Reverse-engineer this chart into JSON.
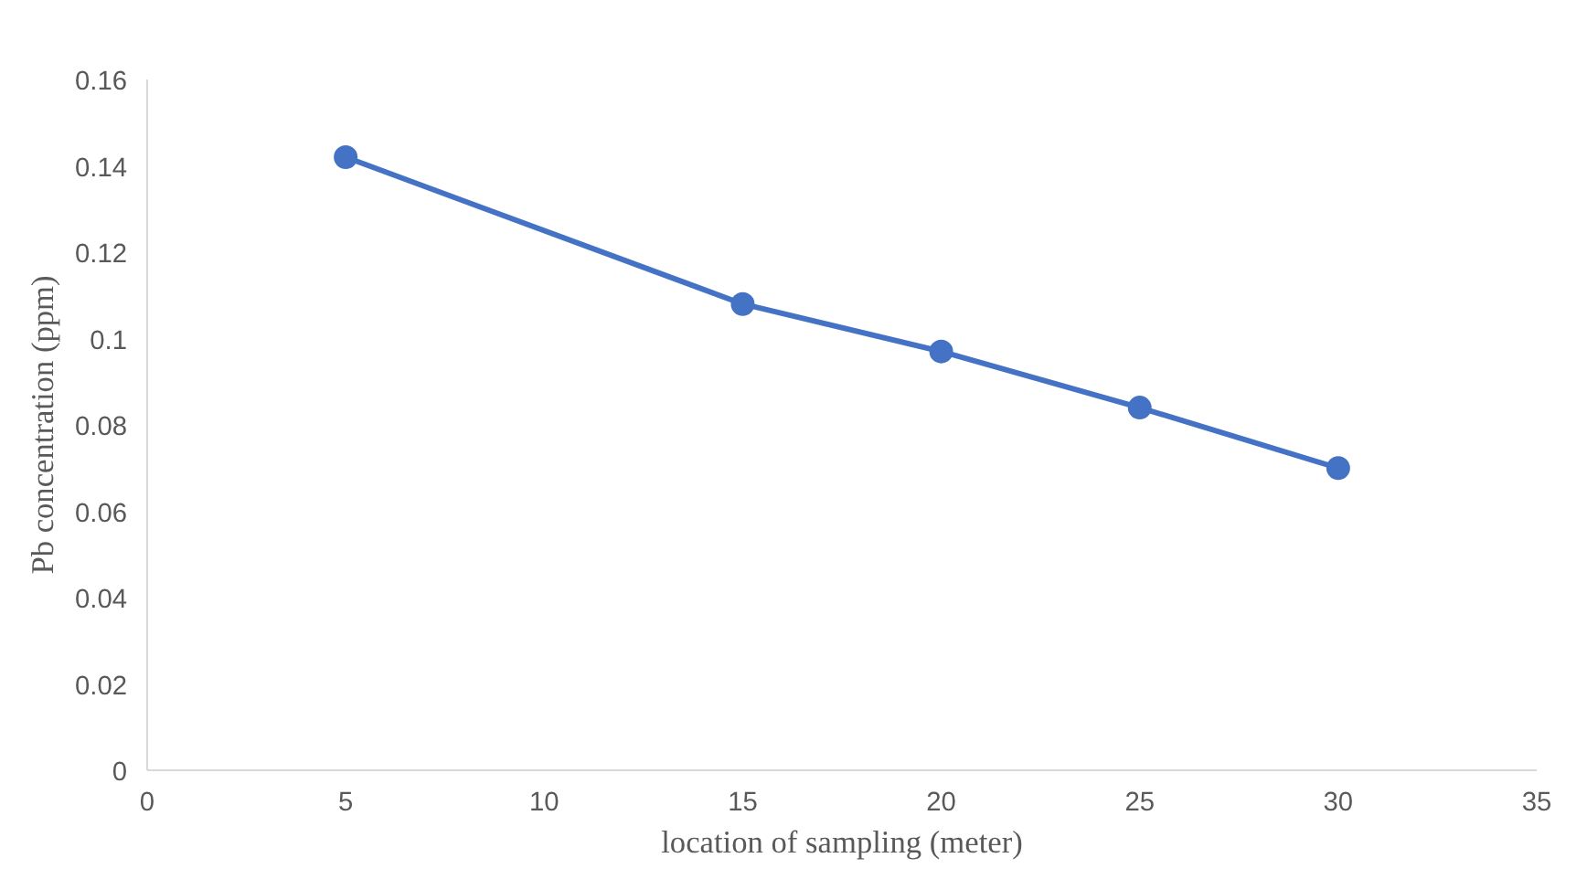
{
  "chart_data": {
    "type": "line",
    "xlabel": "location of sampling (meter)",
    "ylabel": "Pb concentration (ppm)",
    "x": [
      5,
      15,
      20,
      25,
      30
    ],
    "series": [
      {
        "color": "#4472c4",
        "values": [
          0.142,
          0.108,
          0.097,
          0.084,
          0.07
        ]
      }
    ],
    "xlim": [
      0,
      35
    ],
    "xticks": [
      0,
      5,
      10,
      15,
      20,
      25,
      30,
      35
    ],
    "ylim": [
      0,
      0.16
    ],
    "yticks": [
      {
        "value": 0,
        "label": "0"
      },
      {
        "value": 0.02,
        "label": "0.02"
      },
      {
        "value": 0.04,
        "label": "0.04"
      },
      {
        "value": 0.06,
        "label": "0.06"
      },
      {
        "value": 0.08,
        "label": "0.08"
      },
      {
        "value": 0.1,
        "label": "0.1"
      },
      {
        "value": 0.12,
        "label": "0.12"
      },
      {
        "value": 0.14,
        "label": "0.14"
      },
      {
        "value": 0.16,
        "label": "0.16"
      }
    ],
    "grid": false,
    "marker": "circle",
    "line_style": "solid"
  }
}
